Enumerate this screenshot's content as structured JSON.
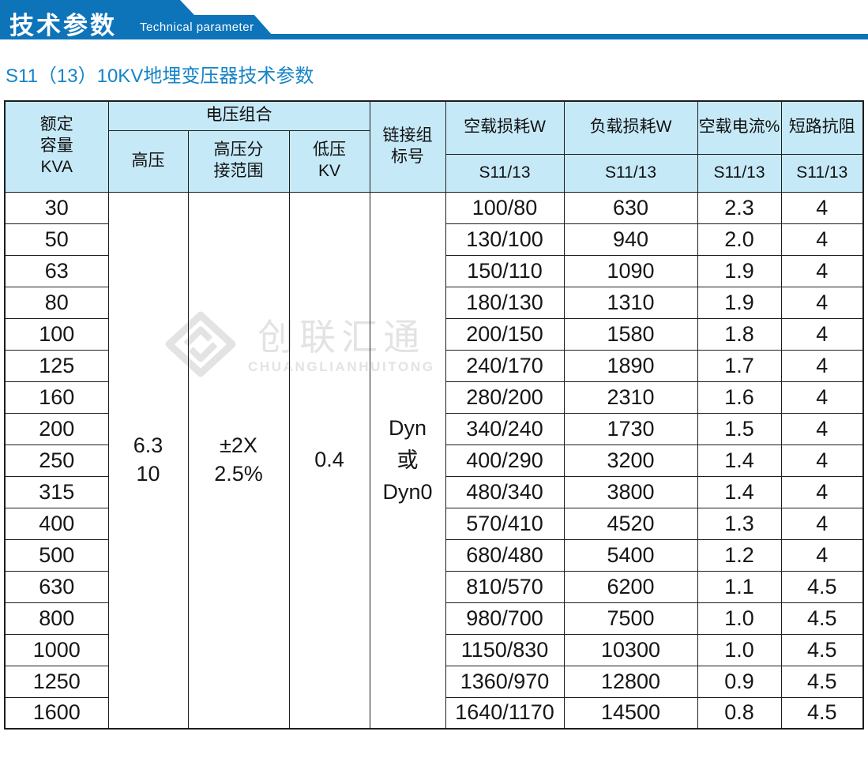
{
  "ribbon": {
    "title_cn": "技术参数",
    "title_en": "Technical parameter"
  },
  "subtitle": "S11（13）10KV地埋变压器技术参数",
  "watermark": {
    "name_cn": "创联汇通",
    "name_en": "CHUANGLIANHUITONG",
    "icon": "brand-diamond-icon"
  },
  "colors": {
    "accent_blue": "#0e74ba",
    "subtitle_blue": "#1684c7",
    "table_header_bg": "#c6e9f8",
    "border": "#1d1d1d",
    "watermark_gray": "#e3e3e3"
  },
  "table": {
    "headers": {
      "capacity": "额定\n容量\nKVA",
      "voltage_group": "电压组合",
      "high_voltage": "高压",
      "tap_range": "高压分\n接范围",
      "low_voltage": "低压\nKV",
      "vector_group": "链接组\n标号",
      "no_load_loss": "空载损耗W",
      "load_loss": "负载损耗W",
      "no_load_current": "空载电流%",
      "short_circuit_impedance": "短路抗阻",
      "model_no_load": "S11/13",
      "model_load": "S11/13",
      "model_current": "S11/13",
      "model_impedance": "S11/13"
    },
    "merged": {
      "high_voltage": "6.3\n10",
      "tap_range": "±2X\n2.5%",
      "low_voltage": "0.4",
      "vector_group": "Dyn\n或\nDyn0"
    },
    "rows": [
      {
        "kva": "30",
        "no_load_loss": "100/80",
        "load_loss": "630",
        "no_load_current": "2.3",
        "impedance": "4"
      },
      {
        "kva": "50",
        "no_load_loss": "130/100",
        "load_loss": "940",
        "no_load_current": "2.0",
        "impedance": "4"
      },
      {
        "kva": "63",
        "no_load_loss": "150/110",
        "load_loss": "1090",
        "no_load_current": "1.9",
        "impedance": "4"
      },
      {
        "kva": "80",
        "no_load_loss": "180/130",
        "load_loss": "1310",
        "no_load_current": "1.9",
        "impedance": "4"
      },
      {
        "kva": "100",
        "no_load_loss": "200/150",
        "load_loss": "1580",
        "no_load_current": "1.8",
        "impedance": "4"
      },
      {
        "kva": "125",
        "no_load_loss": "240/170",
        "load_loss": "1890",
        "no_load_current": "1.7",
        "impedance": "4"
      },
      {
        "kva": "160",
        "no_load_loss": "280/200",
        "load_loss": "2310",
        "no_load_current": "1.6",
        "impedance": "4"
      },
      {
        "kva": "200",
        "no_load_loss": "340/240",
        "load_loss": "1730",
        "no_load_current": "1.5",
        "impedance": "4"
      },
      {
        "kva": "250",
        "no_load_loss": "400/290",
        "load_loss": "3200",
        "no_load_current": "1.4",
        "impedance": "4"
      },
      {
        "kva": "315",
        "no_load_loss": "480/340",
        "load_loss": "3800",
        "no_load_current": "1.4",
        "impedance": "4"
      },
      {
        "kva": "400",
        "no_load_loss": "570/410",
        "load_loss": "4520",
        "no_load_current": "1.3",
        "impedance": "4"
      },
      {
        "kva": "500",
        "no_load_loss": "680/480",
        "load_loss": "5400",
        "no_load_current": "1.2",
        "impedance": "4"
      },
      {
        "kva": "630",
        "no_load_loss": "810/570",
        "load_loss": "6200",
        "no_load_current": "1.1",
        "impedance": "4.5"
      },
      {
        "kva": "800",
        "no_load_loss": "980/700",
        "load_loss": "7500",
        "no_load_current": "1.0",
        "impedance": "4.5"
      },
      {
        "kva": "1000",
        "no_load_loss": "1150/830",
        "load_loss": "10300",
        "no_load_current": "1.0",
        "impedance": "4.5"
      },
      {
        "kva": "1250",
        "no_load_loss": "1360/970",
        "load_loss": "12800",
        "no_load_current": "0.9",
        "impedance": "4.5"
      },
      {
        "kva": "1600",
        "no_load_loss": "1640/1170",
        "load_loss": "14500",
        "no_load_current": "0.8",
        "impedance": "4.5"
      }
    ]
  }
}
